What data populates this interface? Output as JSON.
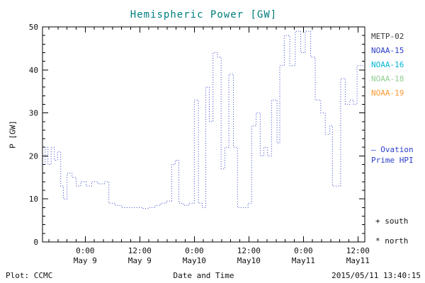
{
  "colors": {
    "title": "#007d7d",
    "axis": "#000000",
    "line_blue": "#2b3cc8"
  },
  "legend": {
    "items": [
      {
        "id": "metp-02",
        "label": "METP-02",
        "color": "#3a3a3a"
      },
      {
        "id": "noaa-15",
        "label": "NOAA-15",
        "color": "#2b3cc8"
      },
      {
        "id": "noaa-16",
        "label": "NOAA-16",
        "color": "#00b8d4"
      },
      {
        "id": "noaa-18",
        "label": "NOAA-18",
        "color": "#93cf93"
      },
      {
        "id": "noaa-19",
        "label": "NOAA-19",
        "color": "#ff9933"
      }
    ]
  },
  "ovation": {
    "line1": "– Ovation",
    "line2": "Prime HPI",
    "color": "#2b3cc8"
  },
  "markers": {
    "south": "+ south",
    "north": "* north"
  },
  "footer": {
    "plot_credit": "Plot: CCMC",
    "timestamp": "2015/05/11 13:40:15"
  },
  "chart_data": {
    "type": "line",
    "subtype": "step-dotted",
    "title": "Hemispheric Power [GW]",
    "xlabel": "Date and Time",
    "ylabel": "P [GW]",
    "ylim": [
      0,
      50
    ],
    "yticks": [
      0,
      10,
      20,
      30,
      40,
      50
    ],
    "xlim_hours": [
      -9.4,
      61.5
    ],
    "xticks": [
      {
        "t": 0,
        "time": "0:00",
        "date": "May 9"
      },
      {
        "t": 12,
        "time": "12:00",
        "date": "May 9"
      },
      {
        "t": 24,
        "time": "0:00",
        "date": "May10"
      },
      {
        "t": 36,
        "time": "12:00",
        "date": "May10"
      },
      {
        "t": 48,
        "time": "0:00",
        "date": "May11"
      },
      {
        "t": 60,
        "time": "12:00",
        "date": "May11"
      }
    ],
    "grid": false,
    "line_color": "#2b3cc8",
    "series": [
      {
        "name": "Ovation Prime HPI",
        "units": "GW",
        "end_t": 61.5,
        "points": [
          [
            -9.3,
            18
          ],
          [
            -8.8,
            22
          ],
          [
            -8.2,
            18
          ],
          [
            -7.5,
            22
          ],
          [
            -6.8,
            19
          ],
          [
            -6.1,
            21
          ],
          [
            -5.4,
            13
          ],
          [
            -4.8,
            10
          ],
          [
            -4,
            16
          ],
          [
            -2.9,
            15
          ],
          [
            -2,
            13
          ],
          [
            -1,
            14
          ],
          [
            0.2,
            13
          ],
          [
            1.4,
            14
          ],
          [
            2.8,
            13.5
          ],
          [
            4.2,
            14
          ],
          [
            5.2,
            9
          ],
          [
            6.6,
            8.5
          ],
          [
            8,
            8
          ],
          [
            9.5,
            8
          ],
          [
            11,
            8
          ],
          [
            12.5,
            7.8
          ],
          [
            14,
            8
          ],
          [
            15.4,
            8.5
          ],
          [
            16.6,
            9
          ],
          [
            17.8,
            9.5
          ],
          [
            19,
            18
          ],
          [
            19.8,
            19
          ],
          [
            20.6,
            9
          ],
          [
            21.6,
            8.5
          ],
          [
            22.8,
            9
          ],
          [
            24,
            33
          ],
          [
            24.9,
            9
          ],
          [
            25.7,
            8
          ],
          [
            26.5,
            36
          ],
          [
            27.3,
            28
          ],
          [
            28.1,
            44
          ],
          [
            29.1,
            43
          ],
          [
            29.9,
            17
          ],
          [
            30.7,
            22
          ],
          [
            31.6,
            39
          ],
          [
            32.6,
            22
          ],
          [
            33.5,
            8
          ],
          [
            34.8,
            8
          ],
          [
            35.8,
            9
          ],
          [
            36.6,
            27
          ],
          [
            37.6,
            30
          ],
          [
            38.5,
            20
          ],
          [
            39.3,
            22
          ],
          [
            40.1,
            20
          ],
          [
            41,
            33
          ],
          [
            42.2,
            23
          ],
          [
            42.8,
            41
          ],
          [
            43.8,
            48
          ],
          [
            45,
            41
          ],
          [
            46.2,
            49
          ],
          [
            47.4,
            44
          ],
          [
            48.4,
            49
          ],
          [
            49.6,
            43
          ],
          [
            50.6,
            33
          ],
          [
            51.8,
            30
          ],
          [
            52.8,
            25
          ],
          [
            53.8,
            27
          ],
          [
            54.4,
            13
          ],
          [
            55.8,
            13
          ],
          [
            56.2,
            38
          ],
          [
            57.2,
            32
          ],
          [
            58.2,
            33
          ],
          [
            59,
            32
          ],
          [
            59.8,
            41
          ]
        ]
      }
    ]
  }
}
